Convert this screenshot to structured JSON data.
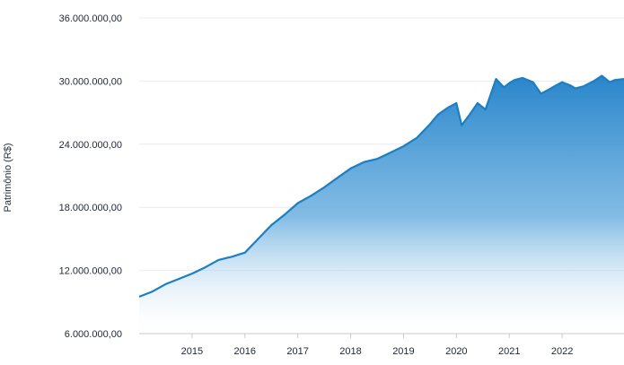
{
  "chart_data": {
    "type": "area",
    "title": "",
    "xlabel": "",
    "ylabel": "Patrimônio (R$)",
    "x_range": [
      2014.0,
      2023.17
    ],
    "ylim": [
      6000000,
      36000000
    ],
    "y_ticks": [
      {
        "value": 6000000,
        "label": "6.000.000,00"
      },
      {
        "value": 12000000,
        "label": "12.000.000,00"
      },
      {
        "value": 18000000,
        "label": "18.000.000,00"
      },
      {
        "value": 24000000,
        "label": "24.000.000,00"
      },
      {
        "value": 30000000,
        "label": "30.000.000,00"
      },
      {
        "value": 36000000,
        "label": "36.000.000,00"
      }
    ],
    "x_ticks": [
      {
        "value": 2015,
        "label": "2015"
      },
      {
        "value": 2016,
        "label": "2016"
      },
      {
        "value": 2017,
        "label": "2017"
      },
      {
        "value": 2018,
        "label": "2018"
      },
      {
        "value": 2019,
        "label": "2019"
      },
      {
        "value": 2020,
        "label": "2020"
      },
      {
        "value": 2021,
        "label": "2021"
      },
      {
        "value": 2022,
        "label": "2022"
      }
    ],
    "grid": true,
    "legend": "none",
    "colors": {
      "line": "#1a7fc4",
      "fill_top": "#1d7fc8",
      "fill_bottom": "#ffffff",
      "grid": "#ececec",
      "axis": "#c9c9c9"
    },
    "series": [
      {
        "x": [
          2014.0,
          2014.25,
          2014.5,
          2014.75,
          2015.0,
          2015.25,
          2015.5,
          2015.75,
          2016.0,
          2016.25,
          2016.5,
          2016.75,
          2017.0,
          2017.25,
          2017.5,
          2017.75,
          2018.0,
          2018.25,
          2018.5,
          2018.75,
          2019.0,
          2019.25,
          2019.5,
          2019.65,
          2019.85,
          2020.0,
          2020.1,
          2020.25,
          2020.4,
          2020.55,
          2020.75,
          2020.9,
          2021.0,
          2021.1,
          2021.25,
          2021.45,
          2021.6,
          2021.75,
          2021.85,
          2022.0,
          2022.15,
          2022.25,
          2022.4,
          2022.6,
          2022.75,
          2022.9,
          2023.0,
          2023.17
        ],
        "values": [
          9500000,
          10000000,
          10700000,
          11200000,
          11700000,
          12300000,
          13000000,
          13300000,
          13700000,
          15000000,
          16300000,
          17300000,
          18400000,
          19100000,
          19900000,
          20800000,
          21700000,
          22300000,
          22600000,
          23200000,
          23800000,
          24600000,
          25900000,
          26800000,
          27500000,
          27900000,
          25800000,
          26800000,
          27900000,
          27300000,
          30200000,
          29400000,
          29800000,
          30100000,
          30300000,
          29900000,
          28800000,
          29200000,
          29500000,
          29900000,
          29600000,
          29300000,
          29500000,
          30000000,
          30500000,
          29900000,
          30100000,
          30200000
        ]
      }
    ]
  }
}
